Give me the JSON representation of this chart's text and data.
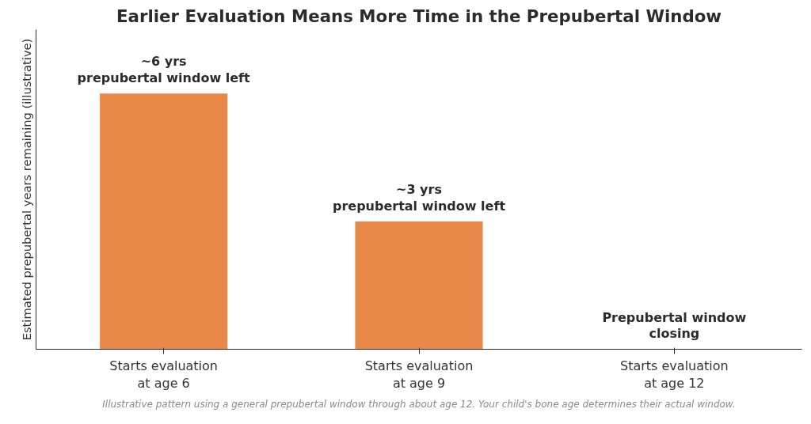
{
  "chart_data": {
    "type": "bar",
    "title": "Earlier Evaluation Means More Time in the Prepubertal Window",
    "ylabel": "Estimated prepubertal years remaining (illustrative)",
    "categories": [
      "Starts evaluation\nat age 6",
      "Starts evaluation\nat age 9",
      "Starts evaluation\nat age 12"
    ],
    "values": [
      6,
      3,
      0
    ],
    "value_labels": [
      "~6 yrs\nprepubertal window left",
      "~3 yrs\nprepubertal window left",
      "Prepubertal window\nclosing"
    ],
    "color": "#e8894a",
    "ylim": [
      0,
      7.5
    ],
    "tick_labels": "x",
    "grid": false,
    "annotations": [
      "Illustrative pattern using a general prepubertal window through about age 12. Your child's bone age determines their actual window."
    ]
  }
}
